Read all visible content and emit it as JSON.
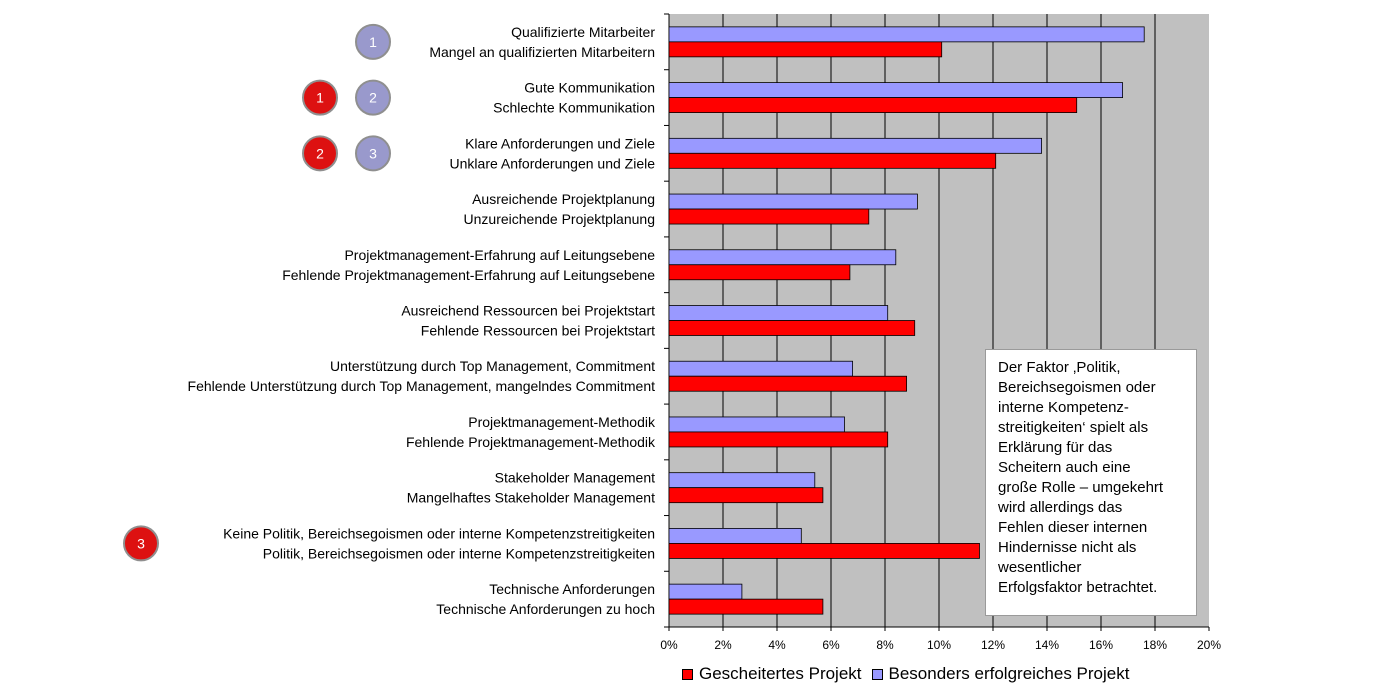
{
  "chart_data": {
    "type": "bar",
    "orientation": "horizontal",
    "categories": [
      {
        "top": "Qualifizierte Mitarbeiter",
        "bottom": "Mangel an qualifizierten Mitarbeitern"
      },
      {
        "top": "Gute Kommunikation",
        "bottom": "Schlechte Kommunikation"
      },
      {
        "top": "Klare Anforderungen und Ziele",
        "bottom": "Unklare Anforderungen und Ziele"
      },
      {
        "top": "Ausreichende Projektplanung",
        "bottom": "Unzureichende Projektplanung"
      },
      {
        "top": "Projektmanagement-Erfahrung auf Leitungsebene",
        "bottom": "Fehlende Projektmanagement-Erfahrung auf Leitungsebene"
      },
      {
        "top": "Ausreichend Ressourcen bei Projektstart",
        "bottom": "Fehlende Ressourcen bei Projektstart"
      },
      {
        "top": "Unterstützung durch Top Management, Commitment",
        "bottom": "Fehlende Unterstützung durch Top Management, mangelndes Commitment"
      },
      {
        "top": "Projektmanagement-Methodik",
        "bottom": "Fehlende Projektmanagement-Methodik"
      },
      {
        "top": "Stakeholder Management",
        "bottom": "Mangelhaftes Stakeholder Management"
      },
      {
        "top": "Keine Politik, Bereichsegoismen oder interne Kompetenzstreitigkeiten",
        "bottom": "Politik, Bereichsegoismen oder interne Kompetenzstreitigkeiten"
      },
      {
        "top": "Technische Anforderungen",
        "bottom": "Technische Anforderungen zu hoch"
      }
    ],
    "series": [
      {
        "name": "Besonders erfolgreiches Projekt",
        "color": "#9999ff",
        "values": [
          17.6,
          16.8,
          13.8,
          9.2,
          8.4,
          8.1,
          6.8,
          6.5,
          5.4,
          4.9,
          2.7
        ]
      },
      {
        "name": "Gescheitertes Projekt",
        "color": "#ff0000",
        "values": [
          10.1,
          15.1,
          12.1,
          7.4,
          6.7,
          9.1,
          8.8,
          8.1,
          5.7,
          11.5,
          5.7
        ]
      }
    ],
    "xlim": [
      0,
      20
    ],
    "xticks": [
      "0%",
      "2%",
      "4%",
      "6%",
      "8%",
      "10%",
      "12%",
      "14%",
      "16%",
      "18%",
      "20%"
    ],
    "grid": true,
    "legend": {
      "position": "bottom",
      "items": [
        {
          "label": "Gescheitertes Projekt",
          "color": "#ff0000"
        },
        {
          "label": "Besonders erfolgreiches Projekt",
          "color": "#9999ff"
        }
      ]
    },
    "rank_markers": [
      {
        "label": "1",
        "category_index": 0,
        "color": "#9999cc"
      },
      {
        "label": "1",
        "category_index": 1,
        "color": "#dd1111"
      },
      {
        "label": "2",
        "category_index": 1,
        "color": "#9999cc"
      },
      {
        "label": "2",
        "category_index": 2,
        "color": "#dd1111"
      },
      {
        "label": "3",
        "category_index": 2,
        "color": "#9999cc"
      },
      {
        "label": "3",
        "category_index": 9,
        "color": "#dd1111"
      }
    ],
    "annotation": [
      "Der Faktor ‚Politik,",
      "Bereichsegoismen oder",
      "interne Kompetenz-",
      "streitigkeiten‘ spielt als",
      "Erklärung für das",
      "Scheitern auch eine",
      "große Rolle – umgekehrt",
      "wird allerdings das",
      "Fehlen dieser internen",
      "Hindernisse nicht als",
      "wesentlicher",
      "Erfolgsfaktor betrachtet."
    ]
  }
}
